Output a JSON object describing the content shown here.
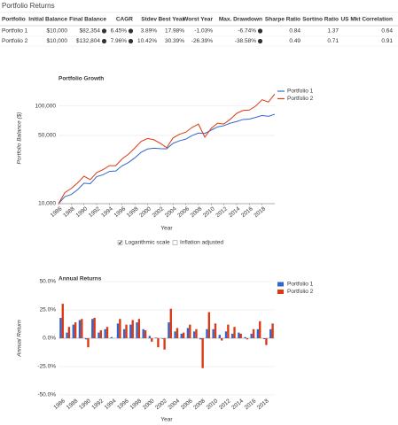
{
  "header": {
    "title": "Portfolio Returns"
  },
  "table": {
    "columns": [
      "Portfolio",
      "Initial Balance",
      "Final Balance",
      "CAGR",
      "Stdev",
      "Best Year",
      "Worst Year",
      "Max. Drawdown",
      "Sharpe Ratio",
      "Sortino Ratio",
      "US Mkt Correlation"
    ],
    "rows": [
      [
        "Portfolio 1",
        "$10,000",
        "$82,354",
        "6.45%",
        "3.89%",
        "17.98%",
        "-1.03%",
        "-6.74%",
        "0.84",
        "1.37",
        "0.64"
      ],
      [
        "Portfolio 2",
        "$10,000",
        "$132,804",
        "7.96%",
        "10.42%",
        "30.39%",
        "-26.39%",
        "-38.58%",
        "0.49",
        "0.71",
        "0.91"
      ]
    ]
  },
  "chart_data": [
    {
      "type": "line",
      "title": "Portfolio Growth",
      "x_label": "Year",
      "y_label": "Portfolio Balance ($)",
      "log_scale": true,
      "grid": true,
      "legend": "right",
      "x": [
        1986,
        1987,
        1988,
        1989,
        1990,
        1991,
        1992,
        1993,
        1994,
        1995,
        1996,
        1997,
        1998,
        1999,
        2000,
        2001,
        2002,
        2003,
        2004,
        2005,
        2006,
        2007,
        2008,
        2009,
        2010,
        2011,
        2012,
        2013,
        2014,
        2015,
        2016,
        2017,
        2018,
        2019,
        2020
      ],
      "xlim": [
        1986,
        2020
      ],
      "xticks": [
        1986,
        1988,
        1990,
        1992,
        1994,
        1996,
        1998,
        2000,
        2002,
        2004,
        2006,
        2008,
        2010,
        2012,
        2014,
        2016,
        2018
      ],
      "ylim": [
        10000,
        220000
      ],
      "yticks": [
        {
          "value": 10000,
          "label": "10,000"
        },
        {
          "value": 50000,
          "label": "50,000"
        },
        {
          "value": 100000,
          "label": "100,000"
        }
      ],
      "series": [
        {
          "name": "Portfolio 1",
          "color": "#3366cc",
          "values": [
            10000,
            11800,
            12400,
            13900,
            16200,
            16000,
            18900,
            19800,
            21400,
            21600,
            24400,
            26400,
            29500,
            33600,
            36300,
            37000,
            36600,
            36400,
            41500,
            44000,
            45800,
            49900,
            52900,
            52400,
            56600,
            61100,
            62900,
            66700,
            69400,
            72800,
            73500,
            76400,
            80000,
            78400,
            82354
          ]
        },
        {
          "name": "Portfolio 2",
          "color": "#dc3912",
          "values": [
            10000,
            13000,
            14300,
            16300,
            19100,
            17600,
            20800,
            22300,
            24500,
            24500,
            28700,
            32100,
            37200,
            43500,
            46500,
            45100,
            41500,
            37400,
            47100,
            51300,
            53900,
            60400,
            65200,
            48000,
            59000,
            66700,
            65400,
            73200,
            84000,
            90000,
            91000,
            100000,
            116000,
            110000,
            132804
          ]
        }
      ],
      "controls": [
        {
          "label": "Logarithmic scale",
          "checked": true
        },
        {
          "label": "Inflation adjusted",
          "checked": false
        }
      ]
    },
    {
      "type": "bar",
      "title": "Annual Returns",
      "x_label": "Year",
      "y_label": "Annual Return",
      "grid": true,
      "legend": "right",
      "categories": [
        "1986",
        null,
        "1988",
        null,
        "1990",
        null,
        "1992",
        null,
        "1994",
        null,
        "1996",
        null,
        "1998",
        null,
        "2000",
        null,
        "2002",
        null,
        "2004",
        null,
        "2006",
        null,
        "2008",
        null,
        "2010",
        null,
        "2012",
        null,
        "2014",
        null,
        "2016",
        null,
        "2018",
        null
      ],
      "ylim": [
        -50,
        50
      ],
      "yticks": [
        {
          "value": -50,
          "label": "-50.0%"
        },
        {
          "value": -25,
          "label": "-25.0%"
        },
        {
          "value": 0,
          "label": "0.0%"
        },
        {
          "value": 25,
          "label": "25.0%"
        },
        {
          "value": 50,
          "label": "50.0%"
        }
      ],
      "series": [
        {
          "name": "Portfolio 1",
          "color": "#3366cc",
          "values": [
            17.98,
            5,
            12,
            16,
            -1.03,
            17,
            5,
            8,
            1,
            13,
            8,
            12,
            14,
            8,
            2,
            0.5,
            -0.5,
            14,
            6,
            4,
            9,
            6,
            -1.03,
            8,
            8,
            3,
            6,
            4,
            5,
            1,
            4,
            8,
            -0.8,
            8
          ]
        },
        {
          "name": "Portfolio 2",
          "color": "#dc3912",
          "values": [
            30.39,
            10,
            14,
            17,
            -8,
            18,
            7,
            10,
            0,
            17,
            12,
            16,
            17,
            7,
            -3,
            -8,
            -10,
            26,
            9,
            5,
            12,
            8,
            -26.39,
            23,
            13,
            -2,
            12,
            10,
            4,
            -1,
            8,
            15,
            -6,
            13
          ]
        }
      ]
    }
  ]
}
